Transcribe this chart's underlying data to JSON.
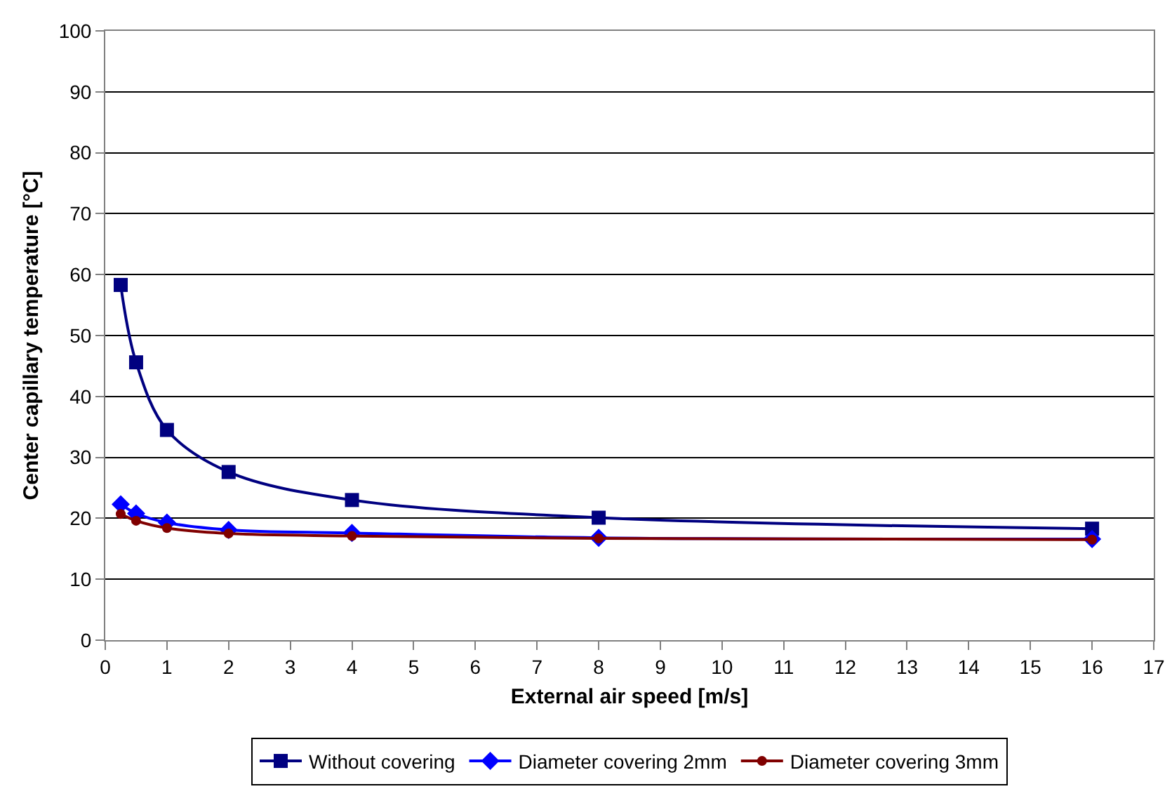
{
  "chart_data": {
    "type": "line",
    "xlabel": "External air speed [m/s]",
    "ylabel": "Center capillary temperature [°C]",
    "x": [
      0.25,
      0.5,
      1,
      2,
      4,
      8,
      16
    ],
    "series": [
      {
        "name": "Without covering",
        "color": "#000080",
        "marker": "square",
        "values": [
          58.3,
          45.6,
          34.5,
          27.6,
          23,
          20.1,
          18.3
        ]
      },
      {
        "name": "Diameter covering 2mm",
        "color": "#0000ff",
        "marker": "diamond",
        "values": [
          22.3,
          20.8,
          19.3,
          18.1,
          17.6,
          16.8,
          16.6
        ]
      },
      {
        "name": "Diameter covering 3mm",
        "color": "#800000",
        "marker": "circle",
        "values": [
          20.7,
          19.6,
          18.4,
          17.5,
          17.1,
          16.7,
          16.5
        ]
      }
    ],
    "xlim": [
      0,
      17
    ],
    "xticks": [
      0,
      1,
      2,
      3,
      4,
      5,
      6,
      7,
      8,
      9,
      10,
      11,
      12,
      13,
      14,
      15,
      16,
      17
    ],
    "ylim": [
      0,
      100
    ],
    "yticks": [
      0,
      10,
      20,
      30,
      40,
      50,
      60,
      70,
      80,
      90,
      100
    ],
    "grid": "y",
    "legend": "bottom",
    "line_style": "solid"
  }
}
